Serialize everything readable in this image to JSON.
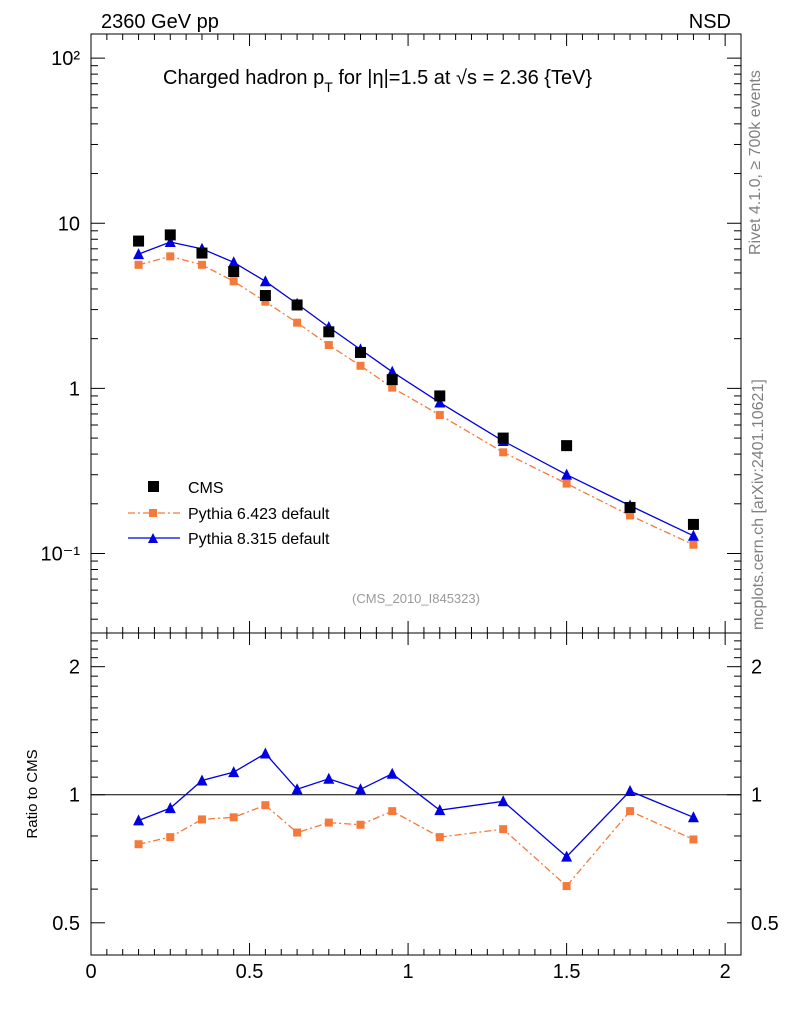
{
  "header": {
    "left": "2360 GeV pp",
    "right": "NSD"
  },
  "side_labels": {
    "rivet": "Rivet 4.1.0, ≥ 700k events",
    "mcplots": "mcplots.cern.ch [arXiv:2401.10621]"
  },
  "title": {
    "prefix": "Charged hadron p",
    "sub": "T",
    "suffix": " for |η|=1.5 at √s = 2.36 {TeV}"
  },
  "analysis_id": "(CMS_2010_I845323)",
  "ratio_ylabel": "Ratio to CMS",
  "colors": {
    "cms": "#000000",
    "pythia6": "#f5793a",
    "pythia8": "#0000e0"
  },
  "chart_data": [
    {
      "type": "line",
      "panel": "main",
      "yscale": "log",
      "ylim": [
        0.033,
        140
      ],
      "xlim": [
        0,
        2.05
      ],
      "y_ticks": [
        "10⁻¹",
        "1",
        "10",
        "10²"
      ],
      "y_tick_values": [
        0.1,
        1,
        10,
        100
      ],
      "legend": [
        "CMS",
        "Pythia 6.423 default",
        "Pythia 8.315 default"
      ],
      "legend_position": "lower-left",
      "x": [
        0.15,
        0.25,
        0.35,
        0.45,
        0.55,
        0.65,
        0.75,
        0.85,
        0.95,
        1.1,
        1.3,
        1.5,
        1.7,
        1.9
      ],
      "series": [
        {
          "name": "CMS",
          "style": "markers-square",
          "values": [
            7.8,
            8.5,
            6.6,
            5.1,
            3.65,
            3.2,
            2.2,
            1.65,
            1.13,
            0.9,
            0.5,
            0.45,
            0.19,
            0.15
          ]
        },
        {
          "name": "Pythia 6.423 default",
          "style": "dashdot-square",
          "values": [
            5.6,
            6.3,
            5.6,
            4.45,
            3.35,
            2.5,
            1.83,
            1.37,
            1.01,
            0.69,
            0.41,
            0.265,
            0.17,
            0.113
          ]
        },
        {
          "name": "Pythia 8.315 default",
          "style": "solid-triangle",
          "values": [
            6.5,
            7.7,
            7.0,
            5.8,
            4.45,
            3.25,
            2.35,
            1.72,
            1.26,
            0.82,
            0.48,
            0.3,
            0.195,
            0.128
          ]
        }
      ]
    },
    {
      "type": "line",
      "panel": "ratio",
      "yscale": "log",
      "ylim": [
        0.42,
        2.4
      ],
      "xlim": [
        0,
        2.05
      ],
      "ylabel": "Ratio to CMS",
      "y_ticks": [
        "0.5",
        "1",
        "2"
      ],
      "y_tick_values": [
        0.5,
        1,
        2
      ],
      "x_ticks": [
        "0",
        "0.5",
        "1",
        "1.5",
        "2"
      ],
      "x_tick_values": [
        0,
        0.5,
        1,
        1.5,
        2
      ],
      "x": [
        0.15,
        0.25,
        0.35,
        0.45,
        0.55,
        0.65,
        0.75,
        0.85,
        0.95,
        1.1,
        1.3,
        1.5,
        1.7,
        1.9
      ],
      "series": [
        {
          "name": "Pythia 6.423 default",
          "values": [
            0.765,
            0.795,
            0.875,
            0.885,
            0.945,
            0.815,
            0.86,
            0.85,
            0.915,
            0.795,
            0.83,
            0.61,
            0.915,
            0.785
          ]
        },
        {
          "name": "Pythia 8.315 default",
          "values": [
            0.87,
            0.93,
            1.08,
            1.13,
            1.25,
            1.03,
            1.09,
            1.03,
            1.12,
            0.92,
            0.965,
            0.715,
            1.02,
            0.885
          ]
        }
      ]
    }
  ]
}
